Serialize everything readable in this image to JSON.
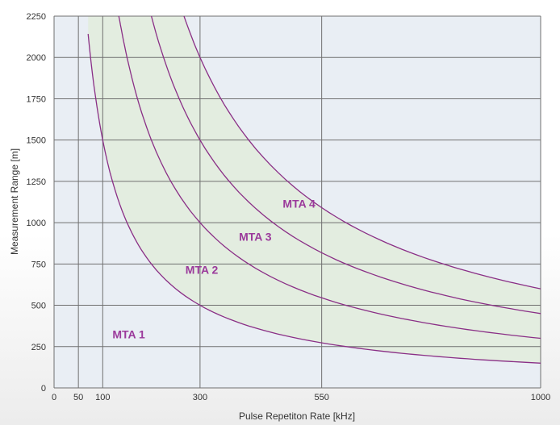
{
  "chart_data": {
    "type": "line",
    "title": "",
    "xlabel": "Pulse Repetiton Rate [kHz]",
    "ylabel": "Measurement Range [m]",
    "xlim": [
      0,
      1000
    ],
    "ylim": [
      0,
      2250
    ],
    "x_ticks": [
      0,
      50,
      100,
      300,
      550,
      1000
    ],
    "y_ticks": [
      0,
      250,
      500,
      750,
      1000,
      1250,
      1500,
      1750,
      2000,
      2250
    ],
    "grid": true,
    "series": [
      {
        "name": "",
        "x": [
          70,
          100,
          150,
          200,
          300,
          400,
          550,
          700,
          850,
          1000
        ],
        "y": [
          2142,
          1500,
          1000,
          750,
          500,
          375,
          273,
          214,
          176,
          150
        ]
      },
      {
        "name": "",
        "x": [
          133,
          150,
          200,
          300,
          400,
          550,
          700,
          850,
          1000
        ],
        "y": [
          2255,
          2000,
          1500,
          1000,
          750,
          545,
          429,
          353,
          300
        ]
      },
      {
        "name": "",
        "x": [
          200,
          250,
          300,
          400,
          550,
          700,
          850,
          1000
        ],
        "y": [
          2250,
          1800,
          1500,
          1125,
          818,
          643,
          529,
          450
        ]
      },
      {
        "name": "",
        "x": [
          267,
          300,
          400,
          550,
          700,
          850,
          1000
        ],
        "y": [
          2250,
          2000,
          1500,
          1091,
          857,
          706,
          600
        ]
      }
    ],
    "regions": [
      "MTA 1",
      "MTA 2",
      "MTA 3",
      "MTA 4"
    ],
    "region_colors": [
      "#e9eef4",
      "#e3ede0",
      "#f5e1cf",
      "#fbebc3"
    ],
    "line_color": "#8a2f86"
  }
}
